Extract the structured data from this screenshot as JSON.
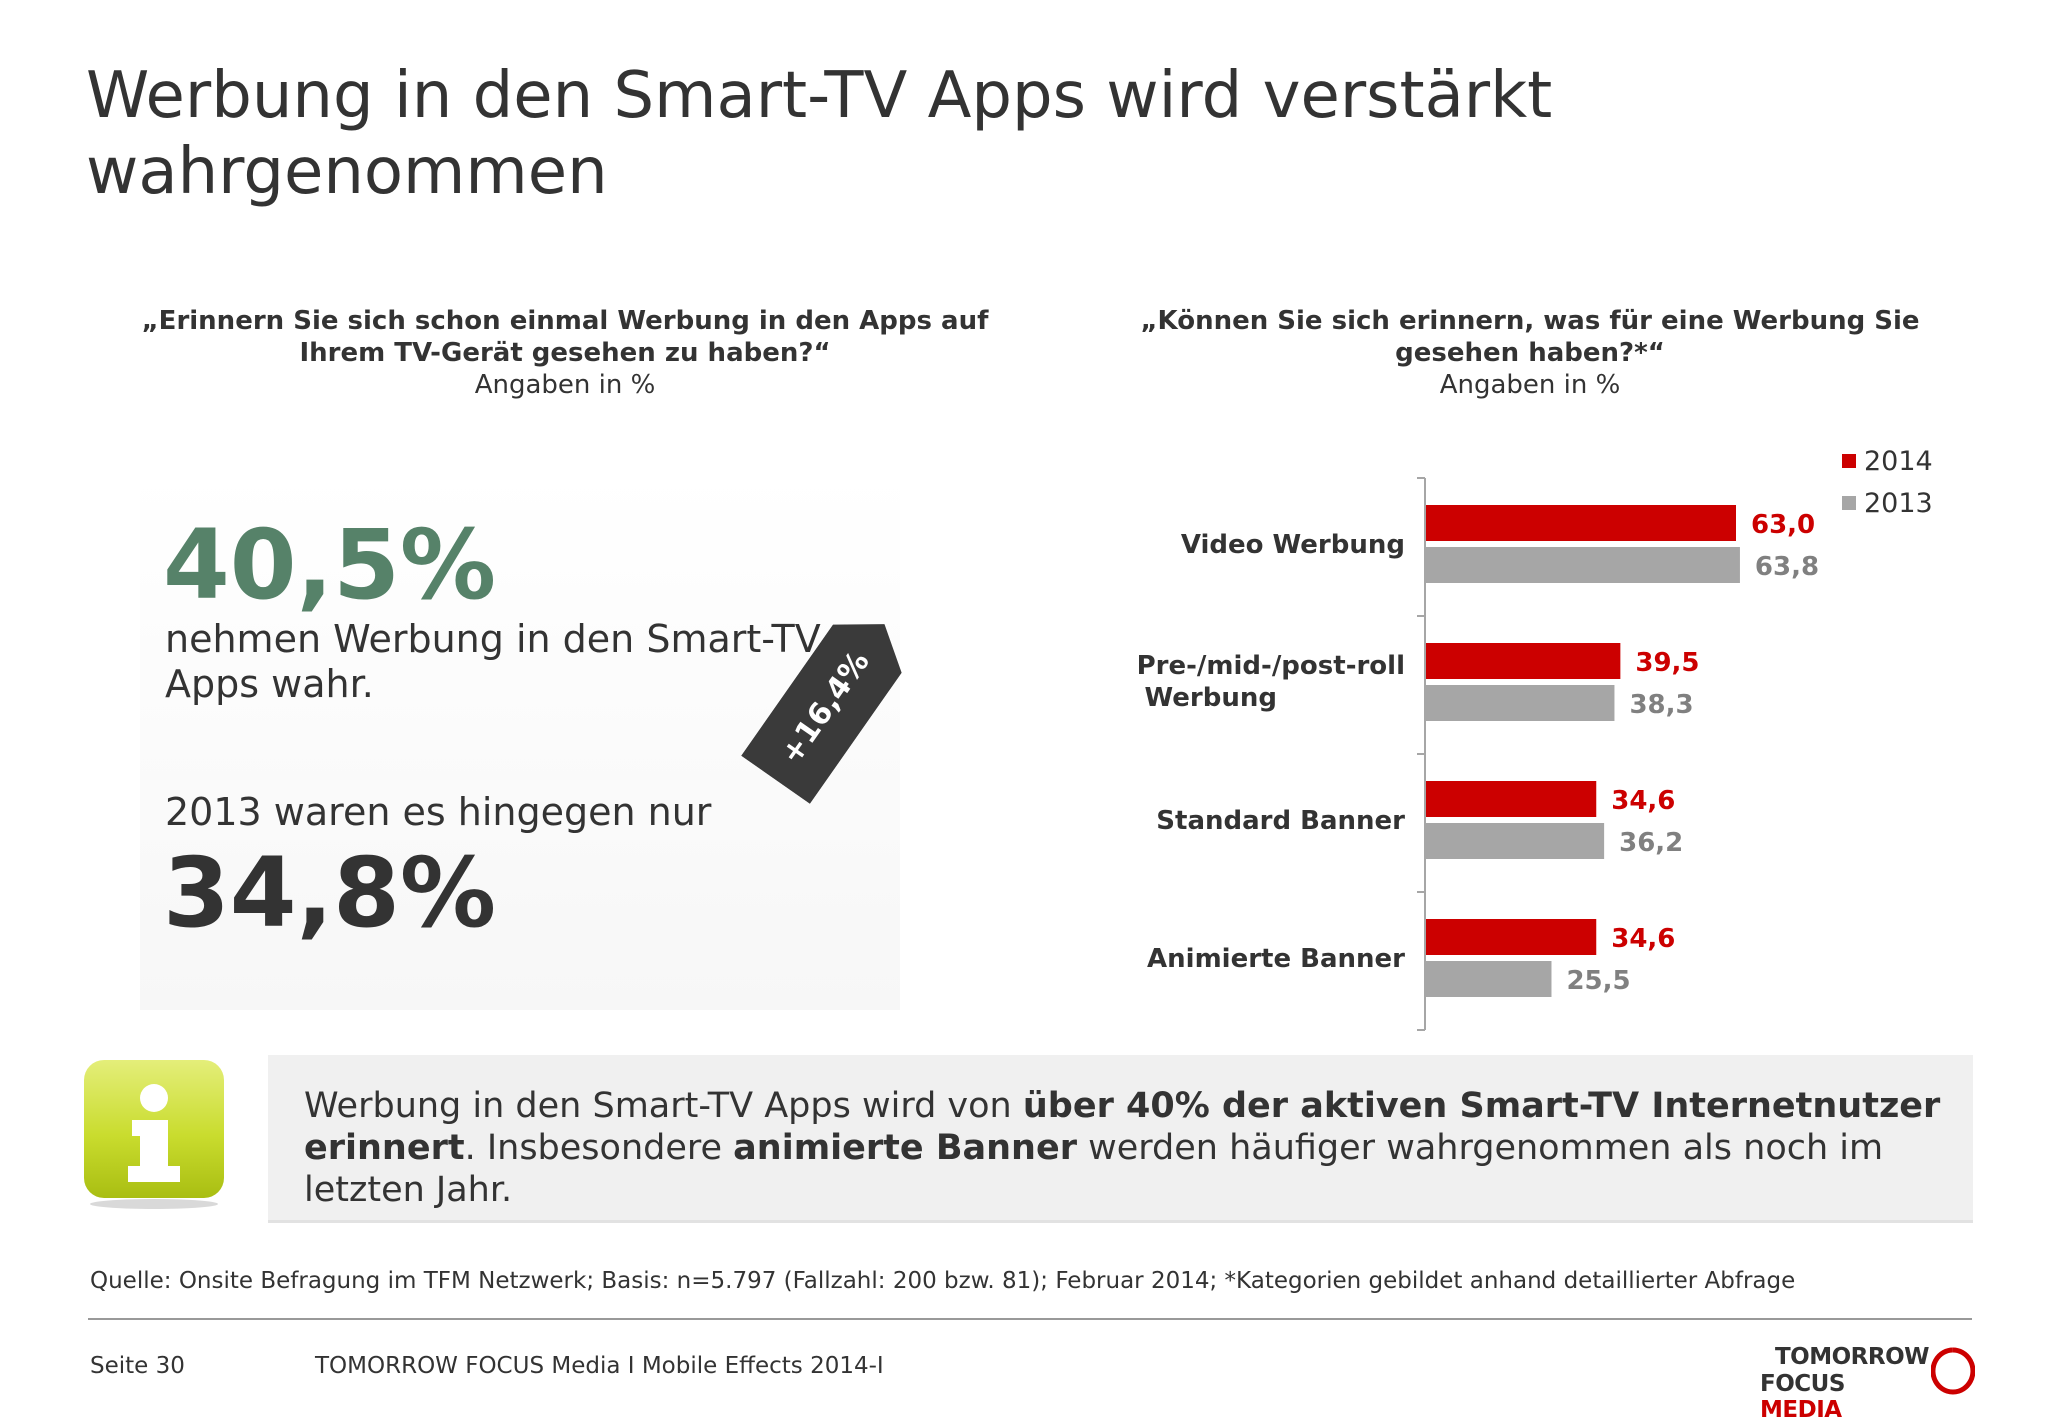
{
  "title": "Werbung in den Smart-TV Apps wird verstärkt wahrgenommen",
  "left": {
    "question": "„Erinnern Sie sich schon einmal Werbung in den Apps auf Ihrem TV-Gerät gesehen zu haben?“",
    "unit": "Angaben in %",
    "stat_2014": "40,5%",
    "stat_2014_text": "nehmen Werbung in den Smart-TV Apps wahr.",
    "stat_2013_text": "2013 waren es hingegen nur",
    "stat_2013": "34,8%",
    "change": "+16,4%"
  },
  "right": {
    "question": "„Können Sie sich erinnern, was für eine Werbung Sie gesehen haben?*“",
    "unit": "Angaben in %"
  },
  "chart_data": {
    "type": "bar",
    "orientation": "horizontal",
    "categories": [
      "Video Werbung",
      "Pre-/mid-/post-roll Werbung",
      "Standard Banner",
      "Animierte Banner"
    ],
    "series": [
      {
        "name": "2014",
        "color": "#cc0000",
        "values": [
          63.0,
          39.5,
          34.6,
          34.6
        ],
        "labels": [
          "63,0",
          "39,5",
          "34,6",
          "34,6"
        ]
      },
      {
        "name": "2013",
        "color": "#a6a6a6",
        "values": [
          63.8,
          38.3,
          36.2,
          25.5
        ],
        "labels": [
          "63,8",
          "38,3",
          "36,2",
          "25,5"
        ]
      }
    ],
    "legend": "top-right",
    "grid": false,
    "xlim": [
      0,
      70
    ]
  },
  "info": {
    "part1": "Werbung in den Smart-TV Apps wird von ",
    "bold1": "über 40% der aktiven Smart-TV Internetnutzer erinnert",
    "part2": ".  Insbesondere ",
    "bold2": "animierte Banner",
    "part3": " werden häufiger wahrgenommen als noch im letzten Jahr."
  },
  "source": "Quelle: Onsite Befragung im TFM Netzwerk; Basis: n=5.797 (Fallzahl: 200 bzw. 81); Februar 2014; *Kategorien gebildet anhand detaillierter Abfrage",
  "footer": {
    "page": "Seite 30",
    "text": "TOMORROW FOCUS Media  I  Mobile Effects 2014-I",
    "brand_line1": "TOMORROW",
    "brand_line2a": "FOCUS ",
    "brand_line2b": "MEDIA"
  }
}
